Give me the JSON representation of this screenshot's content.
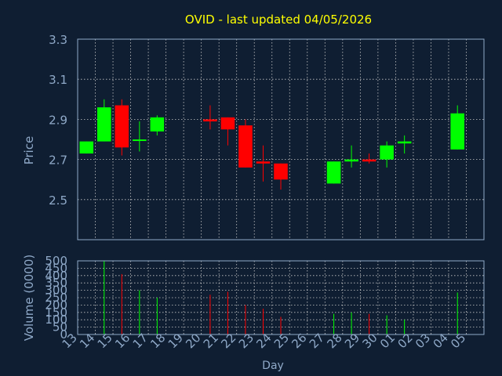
{
  "chart_data": {
    "type": "candlestick",
    "title": "OVID - last updated 04/05/2026",
    "xlabel": "Day",
    "price_panel": {
      "ylabel": "Price",
      "ylim": [
        2.3,
        3.3
      ],
      "yticks": [
        "2.5",
        "2.7",
        "2.9",
        "3.1",
        "3.3"
      ],
      "grid": true
    },
    "volume_panel": {
      "ylabel": "Volume (0000)",
      "ylim": [
        0,
        500
      ],
      "yticks": [
        "0",
        "50",
        "100",
        "150",
        "200",
        "250",
        "300",
        "350",
        "400",
        "450",
        "500"
      ],
      "grid": true
    },
    "x_ticks": [
      "13",
      "14",
      "15",
      "16",
      "17",
      "18",
      "19",
      "20",
      "21",
      "22",
      "23",
      "24",
      "25",
      "26",
      "27",
      "28",
      "29",
      "30",
      "01",
      "02",
      "03",
      "04",
      "05"
    ],
    "candles": [
      {
        "day": "13",
        "open": 2.73,
        "high": 2.79,
        "low": 2.73,
        "close": 2.79,
        "volume": 0
      },
      {
        "day": "14",
        "open": 2.79,
        "high": 3.0,
        "low": 2.79,
        "close": 2.96,
        "volume": 500
      },
      {
        "day": "15",
        "open": 2.97,
        "high": 3.0,
        "low": 2.72,
        "close": 2.76,
        "volume": 410
      },
      {
        "day": "16",
        "open": 2.8,
        "high": 2.89,
        "low": 2.74,
        "close": 2.8,
        "volume": 300
      },
      {
        "day": "17",
        "open": 2.84,
        "high": 2.92,
        "low": 2.82,
        "close": 2.91,
        "volume": 250
      },
      {
        "day": "20",
        "open": 2.9,
        "high": 2.97,
        "low": 2.85,
        "close": 2.89,
        "volume": 270
      },
      {
        "day": "21",
        "open": 2.91,
        "high": 2.91,
        "low": 2.77,
        "close": 2.85,
        "volume": 290
      },
      {
        "day": "22",
        "open": 2.87,
        "high": 2.9,
        "low": 2.66,
        "close": 2.66,
        "volume": 200
      },
      {
        "day": "23",
        "open": 2.69,
        "high": 2.77,
        "low": 2.59,
        "close": 2.68,
        "volume": 175
      },
      {
        "day": "24",
        "open": 2.68,
        "high": 2.68,
        "low": 2.55,
        "close": 2.6,
        "volume": 120
      },
      {
        "day": "27",
        "open": 2.58,
        "high": 2.69,
        "low": 2.58,
        "close": 2.69,
        "volume": 140
      },
      {
        "day": "28",
        "open": 2.69,
        "high": 2.77,
        "low": 2.66,
        "close": 2.7,
        "volume": 150
      },
      {
        "day": "29",
        "open": 2.7,
        "high": 2.73,
        "low": 2.68,
        "close": 2.69,
        "volume": 140
      },
      {
        "day": "30",
        "open": 2.7,
        "high": 2.79,
        "low": 2.66,
        "close": 2.77,
        "volume": 130
      },
      {
        "day": "01",
        "open": 2.78,
        "high": 2.82,
        "low": 2.73,
        "close": 2.79,
        "volume": 100
      },
      {
        "day": "04",
        "open": 2.75,
        "high": 2.97,
        "low": 2.75,
        "close": 2.93,
        "volume": 285
      }
    ],
    "colors": {
      "background": "#0f1e32",
      "plot_background": "#0f1e32",
      "up": "#00ff00",
      "down": "#ff0000",
      "title": "#ffff00",
      "axis_text": "#8fa9c8",
      "grid": "#c8c8c8",
      "frame": "#8fa9c8"
    }
  }
}
